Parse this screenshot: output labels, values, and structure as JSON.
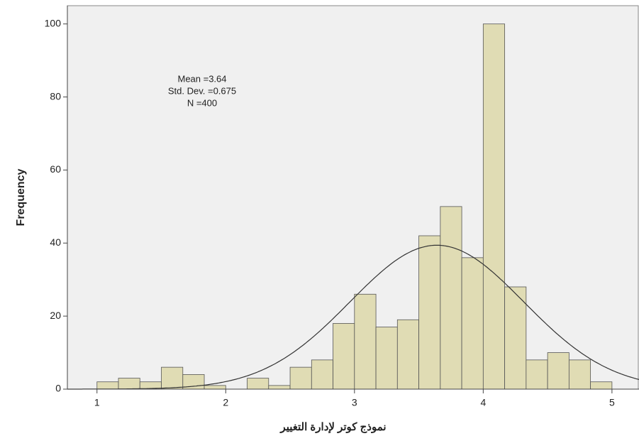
{
  "chart_data": {
    "type": "histogram",
    "x_label": "نموذج كوتر لإدارة التغيير",
    "y_label": "Frequency",
    "bins": [
      1,
      1.1667,
      1.3333,
      1.5,
      1.6667,
      1.8333,
      2,
      2.1667,
      2.3333,
      2.5,
      2.6667,
      2.8333,
      3,
      3.1667,
      3.3333,
      3.5,
      3.6667,
      3.8333,
      4,
      4.1667,
      4.3333,
      4.5,
      4.6667,
      4.8333,
      5
    ],
    "values": [
      2,
      3,
      2,
      6,
      4,
      1,
      0,
      3,
      1,
      6,
      8,
      18,
      26,
      17,
      19,
      42,
      50,
      36,
      100,
      28,
      8,
      10,
      8,
      2
    ],
    "color": "#e0dcb4",
    "edge_color": "#555555",
    "curve_color": "#333333",
    "stats": [
      {
        "label": "Mean =3.64",
        "value": 3.64
      },
      {
        "label": "Std. Dev. =0.675",
        "value": 0.675
      },
      {
        "label": "N =400",
        "value": 400
      }
    ],
    "xlim": [
      0.77,
      5.21
    ],
    "xticks": [
      1,
      2,
      3,
      4,
      5
    ],
    "ylim": [
      0,
      105
    ],
    "yticks": [
      0,
      20,
      40,
      60,
      80,
      100
    ]
  }
}
